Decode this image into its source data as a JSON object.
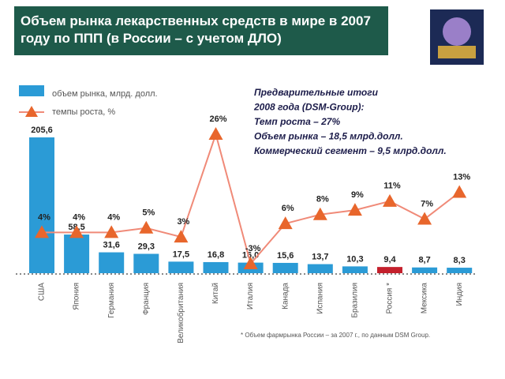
{
  "chart_data": {
    "type": "bar-line",
    "title": "Объем рынка лекарственных средств в мире в 2007 году по ППП (в России – с учетом ДЛО)",
    "categories": [
      "США",
      "Япония",
      "Германия",
      "Франция",
      "Великобритания",
      "Китай",
      "Италия",
      "Канада",
      "Испания",
      "Бразилия",
      "Россия *",
      "Мексика",
      "Индия"
    ],
    "series": [
      {
        "name": "объем рынка, млрд. долл.",
        "type": "bar",
        "color": "#2b9bd6",
        "colors": [
          "#2b9bd6",
          "#2b9bd6",
          "#2b9bd6",
          "#2b9bd6",
          "#2b9bd6",
          "#2b9bd6",
          "#2b9bd6",
          "#2b9bd6",
          "#2b9bd6",
          "#2b9bd6",
          "#c4202c",
          "#2b9bd6",
          "#2b9bd6"
        ],
        "values": [
          205.6,
          58.5,
          31.6,
          29.3,
          17.5,
          16.8,
          16.0,
          15.6,
          13.7,
          10.3,
          9.4,
          8.7,
          8.3
        ],
        "value_labels": [
          "205,6",
          "58,5",
          "31,6",
          "29,3",
          "17,5",
          "16,8",
          "16,0",
          "15,6",
          "13,7",
          "10,3",
          "9,4",
          "8,7",
          "8,3"
        ]
      },
      {
        "name": "темпы роста, %",
        "type": "line",
        "color": "#f08a78",
        "marker_color": "#e8662c",
        "values": [
          4,
          4,
          4,
          5,
          3,
          26,
          -3,
          6,
          8,
          9,
          11,
          7,
          13
        ],
        "value_labels": [
          "4%",
          "4%",
          "4%",
          "5%",
          "3%",
          "26%",
          "-3%",
          "6%",
          "8%",
          "9%",
          "11%",
          "7%",
          "13%"
        ]
      }
    ],
    "annotation": [
      "Предварительные итоги",
      " 2008 года (DSM-Group):",
      "Темп роста – 27%",
      "Объем рынка – 18,5 млрд.долл.",
      "Коммерческий сегмент – 9,5 млрд.долл."
    ],
    "footnote": "* Объем фармрынка России – за 2007 г., по данным DSM Group."
  }
}
